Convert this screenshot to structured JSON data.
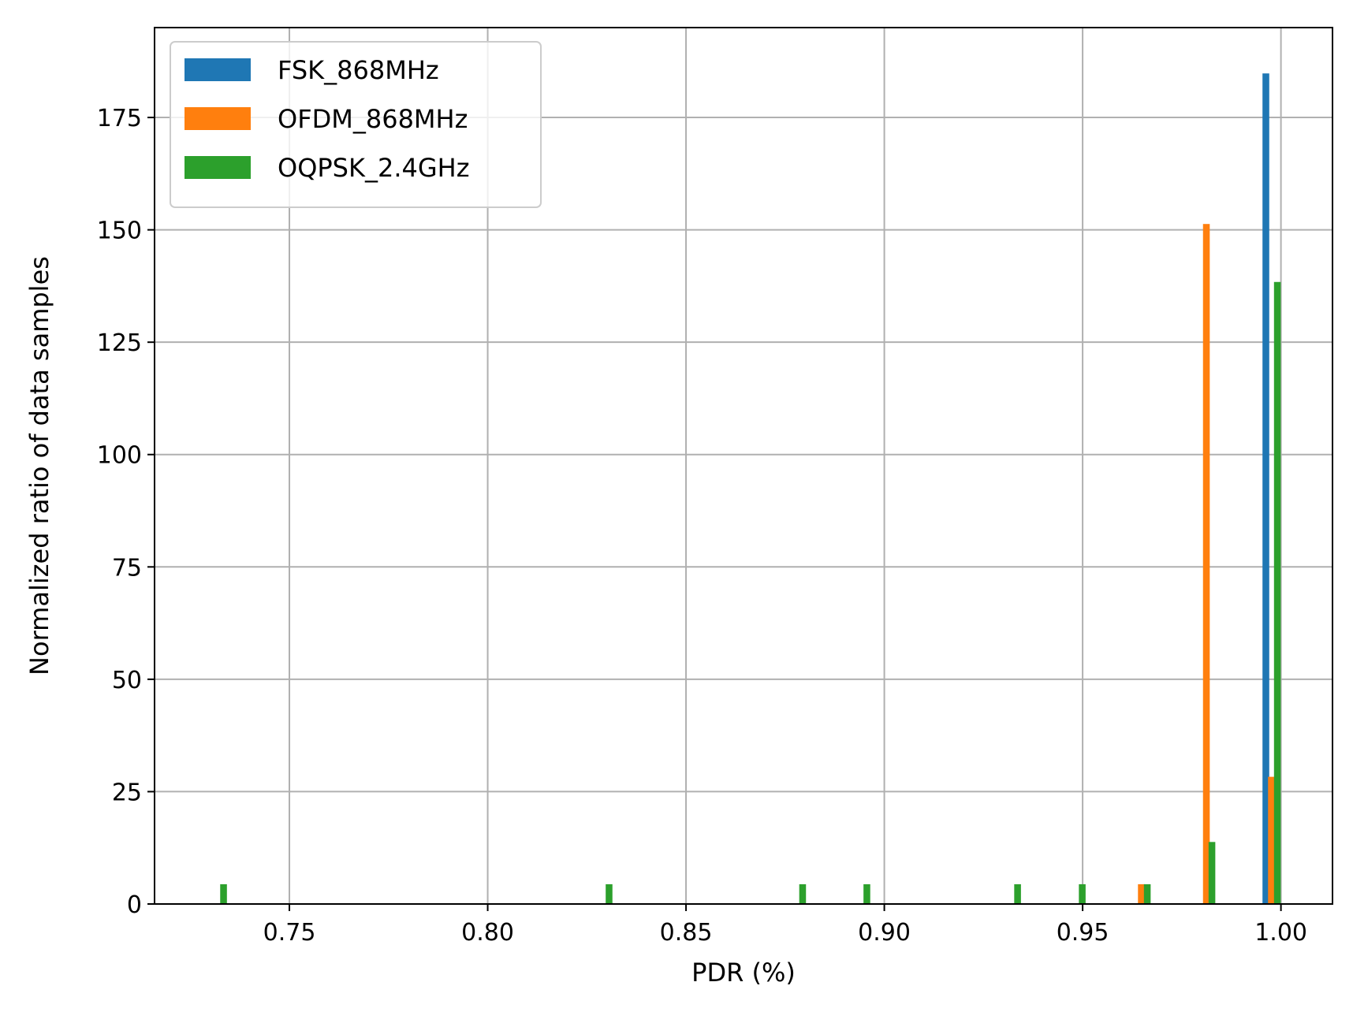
{
  "chart_data": {
    "type": "bar",
    "title": "",
    "xlabel": "PDR (%)",
    "ylabel": "Normalized ratio of data samples",
    "xlim": [
      0.716,
      1.013
    ],
    "ylim": [
      0,
      195
    ],
    "xticks": [
      0.75,
      0.8,
      0.85,
      0.9,
      0.95,
      1.0
    ],
    "xtick_labels": [
      "0.75",
      "0.80",
      "0.85",
      "0.90",
      "0.95",
      "1.00"
    ],
    "yticks": [
      0,
      25,
      50,
      75,
      100,
      125,
      150,
      175
    ],
    "ytick_labels": [
      "0",
      "25",
      "50",
      "75",
      "100",
      "125",
      "150",
      "175"
    ],
    "grid": true,
    "legend_position": "top-left",
    "bar_width": 0.0017,
    "series": [
      {
        "name": "FSK_868MHz",
        "color": "#1f77b4",
        "bars": [
          {
            "x": 0.9962,
            "y": 184.8
          }
        ]
      },
      {
        "name": "OFDM_868MHz",
        "color": "#ff7f0e",
        "bars": [
          {
            "x": 0.9648,
            "y": 4.4
          },
          {
            "x": 0.9812,
            "y": 151.3
          },
          {
            "x": 0.9976,
            "y": 28.3
          }
        ]
      },
      {
        "name": "OQPSK_2.4GHz",
        "color": "#2ca02c",
        "bars": [
          {
            "x": 0.7334,
            "y": 4.4
          },
          {
            "x": 0.8306,
            "y": 4.4
          },
          {
            "x": 0.8794,
            "y": 4.4
          },
          {
            "x": 0.8956,
            "y": 4.4
          },
          {
            "x": 0.9336,
            "y": 4.4
          },
          {
            "x": 0.9499,
            "y": 4.4
          },
          {
            "x": 0.9663,
            "y": 4.4
          },
          {
            "x": 0.9826,
            "y": 13.8
          },
          {
            "x": 0.9991,
            "y": 138.4
          }
        ]
      }
    ]
  }
}
